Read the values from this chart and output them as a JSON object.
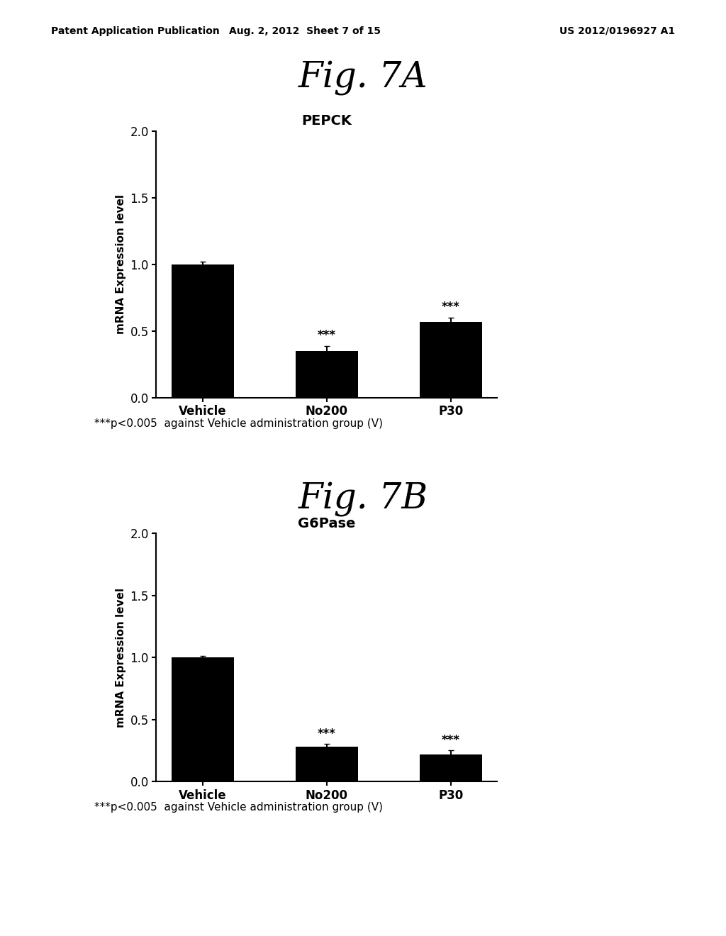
{
  "fig_title_A": "Fig. 7A",
  "fig_title_B": "Fig. 7B",
  "chart_title_A": "PEPCK",
  "chart_title_B": "G6Pase",
  "categories": [
    "Vehicle",
    "No200",
    "P30"
  ],
  "values_A": [
    1.0,
    0.35,
    0.57
  ],
  "errors_A": [
    0.02,
    0.04,
    0.03
  ],
  "values_B": [
    1.0,
    0.28,
    0.22
  ],
  "errors_B": [
    0.015,
    0.025,
    0.03
  ],
  "significance_A": [
    "",
    "***",
    "***"
  ],
  "significance_B": [
    "",
    "***",
    "***"
  ],
  "ylabel": "mRNA Expression level",
  "ylim": [
    0,
    2.0
  ],
  "yticks": [
    0.0,
    0.5,
    1.0,
    1.5,
    2.0
  ],
  "bar_color": "#000000",
  "bar_width": 0.5,
  "footnote": "***p<0.005  against Vehicle administration group (V)",
  "header_left": "Patent Application Publication",
  "header_mid": "Aug. 2, 2012  Sheet 7 of 15",
  "header_right": "US 2012/0196927 A1",
  "title_fontsize": 36,
  "chart_title_fontsize": 14,
  "axis_fontsize": 11,
  "tick_fontsize": 12,
  "sig_fontsize": 12,
  "footnote_fontsize": 11,
  "header_fontsize": 10
}
